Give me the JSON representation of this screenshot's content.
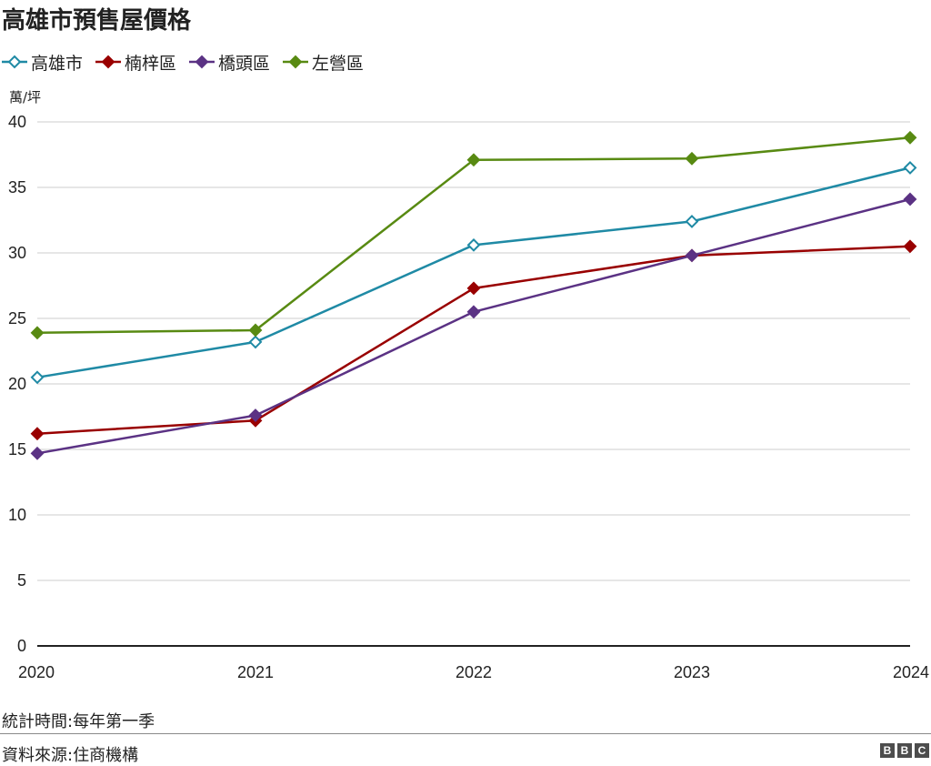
{
  "chart_data": {
    "type": "line",
    "title": "高雄市預售屋價格",
    "ylabel": "萬/坪",
    "x": [
      "2020",
      "2021",
      "2022",
      "2023",
      "2024"
    ],
    "ylim": [
      0,
      40
    ],
    "yticks": [
      0,
      5,
      10,
      15,
      20,
      25,
      30,
      35,
      40
    ],
    "grid": true,
    "legend_position": "top-left",
    "series": [
      {
        "name": "高雄市",
        "color": "#1f8aa5",
        "marker": "hollow-diamond",
        "values": [
          20.5,
          23.2,
          30.6,
          32.4,
          36.5
        ]
      },
      {
        "name": "楠梓區",
        "color": "#990000",
        "marker": "filled-diamond",
        "values": [
          16.2,
          17.2,
          27.3,
          29.8,
          30.5
        ]
      },
      {
        "name": "橋頭區",
        "color": "#5b3284",
        "marker": "filled-diamond",
        "values": [
          14.7,
          17.6,
          25.5,
          29.8,
          34.1
        ]
      },
      {
        "name": "左營區",
        "color": "#588a12",
        "marker": "filled-diamond",
        "values": [
          23.9,
          24.1,
          37.1,
          37.2,
          38.8
        ]
      }
    ]
  },
  "footer": {
    "note": "統計時間:每年第一季",
    "source": "資料來源:住商機構",
    "logo_letters": [
      "B",
      "B",
      "C"
    ]
  }
}
